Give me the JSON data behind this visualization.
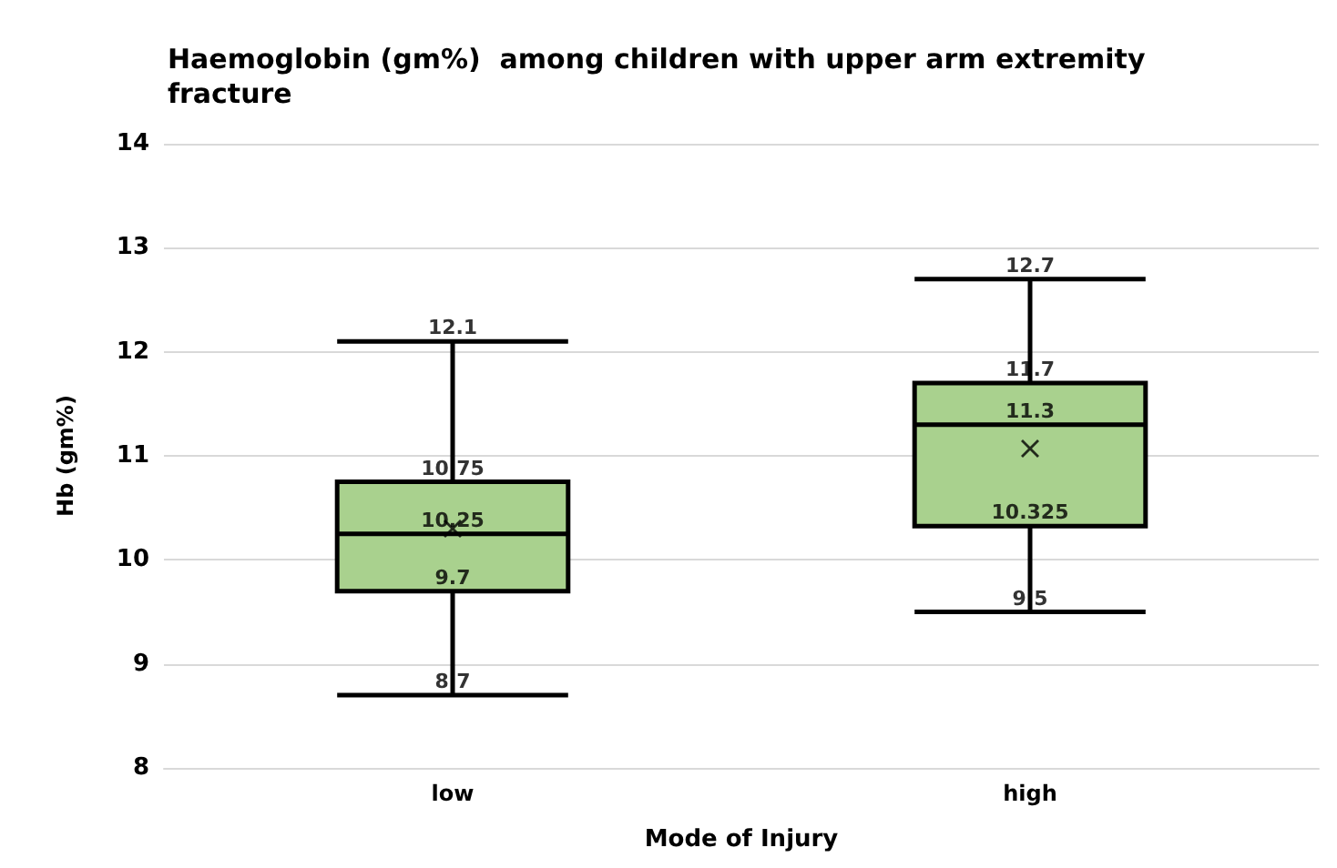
{
  "chart_data": {
    "type": "box",
    "title": "Haemoglobin (gm%)  among children with upper arm extremity fracture",
    "xlabel": "Mode of Injury",
    "ylabel": "Hb (gm%)",
    "categories": [
      "low",
      "high"
    ],
    "series": [
      {
        "color": "#a9d18e",
        "boxes": [
          {
            "low": 8.7,
            "q1": 9.7,
            "median": 10.25,
            "q3": 10.75,
            "high": 12.1,
            "mean": 10.3
          },
          {
            "low": 9.5,
            "q1": 10.325,
            "median": 11.3,
            "q3": 11.7,
            "high": 12.7,
            "mean": 11.07
          }
        ]
      }
    ],
    "annotations": [
      {
        "text": "8.7",
        "x": "low",
        "y": 8.7
      },
      {
        "text": "9.7",
        "x": "low",
        "y": 9.7
      },
      {
        "text": "10.25",
        "x": "low",
        "y": 10.25
      },
      {
        "text": "10.75",
        "x": "low",
        "y": 10.75
      },
      {
        "text": "12.1",
        "x": "low",
        "y": 12.1
      },
      {
        "text": "9.5",
        "x": "high",
        "y": 9.5
      },
      {
        "text": "10.325",
        "x": "high",
        "y": 10.325
      },
      {
        "text": "11.3",
        "x": "high",
        "y": 11.3
      },
      {
        "text": "11.7",
        "x": "high",
        "y": 11.7
      },
      {
        "text": "12.7",
        "x": "high",
        "y": 12.7
      }
    ],
    "ylim": [
      8,
      14
    ],
    "yticks": [
      8,
      9,
      10,
      11,
      12,
      13,
      14
    ],
    "grid": "y"
  }
}
